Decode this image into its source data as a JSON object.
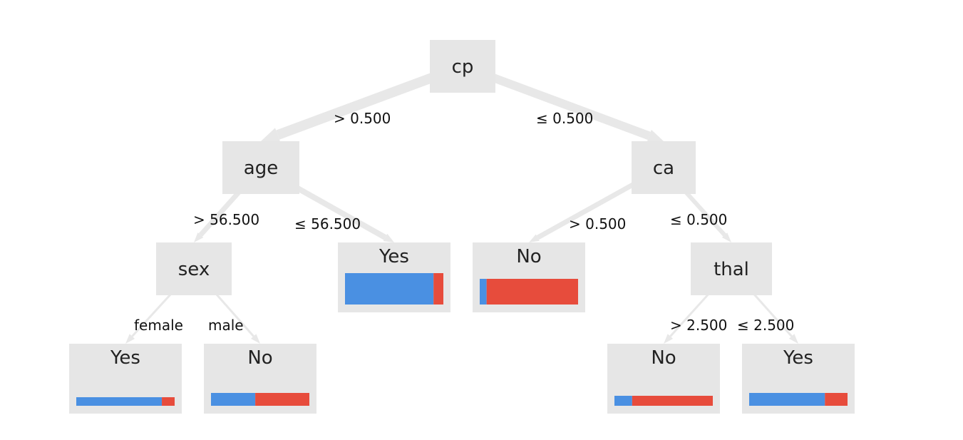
{
  "colors": {
    "node_fill": "#e6e6e6",
    "edge": "#e8e8e8",
    "class_yes": "#4a90e2",
    "class_no": "#e74c3c",
    "background": "#ffffff"
  },
  "nodes": [
    {
      "id": "cp",
      "label": "cp",
      "type": "split"
    },
    {
      "id": "age",
      "label": "age",
      "type": "split"
    },
    {
      "id": "ca",
      "label": "ca",
      "type": "split"
    },
    {
      "id": "sex",
      "label": "sex",
      "type": "split"
    },
    {
      "id": "leaf-age-le",
      "label": "Yes",
      "type": "leaf",
      "yes_fraction": 0.9
    },
    {
      "id": "leaf-ca-gt",
      "label": "No",
      "type": "leaf",
      "yes_fraction": 0.07
    },
    {
      "id": "thal",
      "label": "thal",
      "type": "split"
    },
    {
      "id": "leaf-female",
      "label": "Yes",
      "type": "leaf",
      "yes_fraction": 0.87
    },
    {
      "id": "leaf-male",
      "label": "No",
      "type": "leaf",
      "yes_fraction": 0.45
    },
    {
      "id": "leaf-thal-gt",
      "label": "No",
      "type": "leaf",
      "yes_fraction": 0.18
    },
    {
      "id": "leaf-thal-le",
      "label": "Yes",
      "type": "leaf",
      "yes_fraction": 0.77
    }
  ],
  "edges": [
    {
      "from": "cp",
      "to": "age",
      "label": "> 0.500"
    },
    {
      "from": "cp",
      "to": "ca",
      "label": "≤ 0.500"
    },
    {
      "from": "age",
      "to": "sex",
      "label": "> 56.500"
    },
    {
      "from": "age",
      "to": "leaf-age-le",
      "label": "≤ 56.500"
    },
    {
      "from": "ca",
      "to": "leaf-ca-gt",
      "label": "> 0.500"
    },
    {
      "from": "ca",
      "to": "thal",
      "label": "≤ 0.500"
    },
    {
      "from": "sex",
      "to": "leaf-female",
      "label": "female"
    },
    {
      "from": "sex",
      "to": "leaf-male",
      "label": "male"
    },
    {
      "from": "thal",
      "to": "leaf-thal-gt",
      "label": "> 2.500"
    },
    {
      "from": "thal",
      "to": "leaf-thal-le",
      "label": "≤ 2.500"
    }
  ]
}
